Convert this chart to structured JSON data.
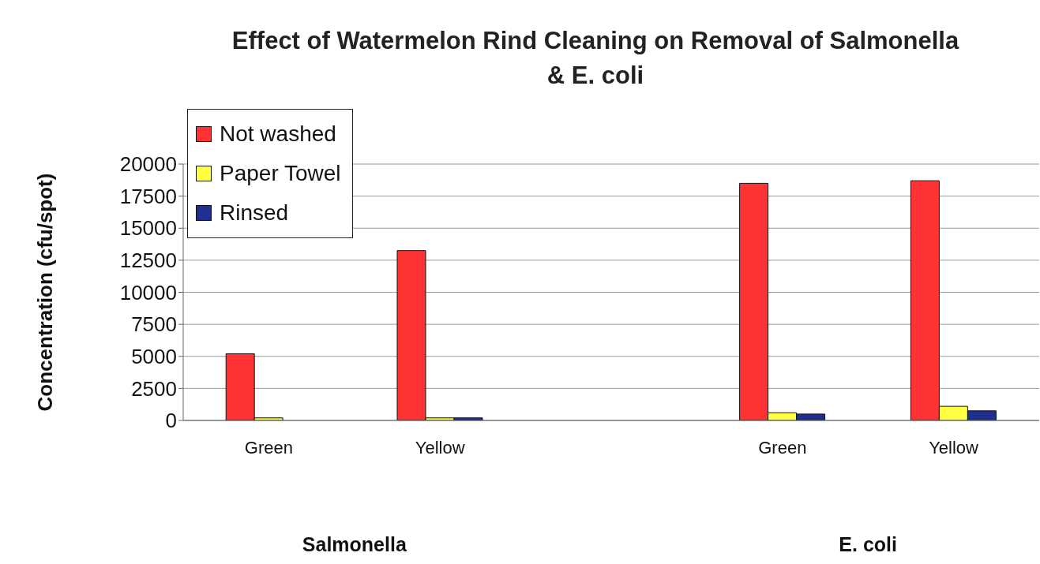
{
  "chart_data": {
    "type": "bar",
    "title": "Effect of Watermelon Rind Cleaning on Removal of Salmonella & E. coli",
    "ylabel": "Concentration (cfu/spot)",
    "categories": [
      "Green",
      "Yellow",
      null,
      "Green",
      "Yellow"
    ],
    "series": [
      {
        "name": "Not washed",
        "color": "#ff3333",
        "values": [
          5200,
          13250,
          null,
          18500,
          18700
        ]
      },
      {
        "name": "Paper Towel",
        "color": "#ffff44",
        "values": [
          200,
          200,
          null,
          600,
          1100
        ]
      },
      {
        "name": "Rinsed",
        "color": "#1f2f8f",
        "values": [
          0,
          200,
          null,
          500,
          750
        ]
      }
    ],
    "ylim": [
      0,
      20000
    ],
    "yticks": [
      0,
      2500,
      5000,
      7500,
      10000,
      12500,
      15000,
      17500,
      20000
    ],
    "grid": "y",
    "legend": "top left",
    "annotations": [
      "Salmonella",
      "E. coli"
    ]
  }
}
